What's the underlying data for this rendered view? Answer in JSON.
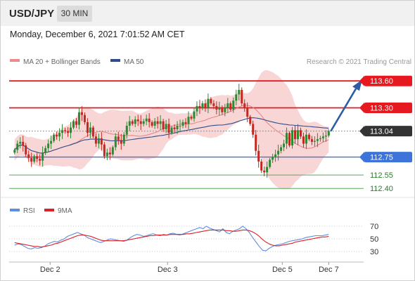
{
  "header": {
    "symbol": "USD/JPY",
    "interval": "30 MIN",
    "datetime": "Monday, December 6, 2021 7:01:52 AM CET"
  },
  "legend": {
    "ma20_label": "MA 20 + Bollinger Bands",
    "ma50_label": "MA 50",
    "copyright": "Research © 2021 Trading Central",
    "rsi_label": "RSI",
    "rsi_ma_label": "9MA"
  },
  "colors": {
    "resistance": "#e5191f",
    "support": "#3d74d9",
    "target_support": "#5aa85a",
    "current": "#333333",
    "candle_up": "#2d8a34",
    "candle_down": "#c42821",
    "bollinger_fill": "#f7c8c8",
    "ma20": "#e88080",
    "ma50": "#2e4b8c",
    "arrow": "#2c5da3",
    "rsi": "#5f8ee0",
    "rsi_ma": "#d9222a"
  },
  "chart_data": [
    {
      "type": "candlestick",
      "ylim": [
        112.3,
        113.68
      ],
      "xlim": [
        0,
        120
      ],
      "x_ticks": [
        {
          "label": "Dec 2",
          "x": 15
        },
        {
          "label": "Dec 3",
          "x": 58
        },
        {
          "label": "Dec 5",
          "x": 100
        },
        {
          "label": "Dec 7",
          "x": 117
        }
      ],
      "levels": [
        {
          "label": "113.60",
          "value": 113.6,
          "kind": "resistance"
        },
        {
          "label": "113.30",
          "value": 113.3,
          "kind": "resistance"
        },
        {
          "label": "113.04",
          "value": 113.04,
          "kind": "current"
        },
        {
          "label": "112.75",
          "value": 112.75,
          "kind": "support"
        },
        {
          "label": "112.55",
          "value": 112.55,
          "kind": "target_support"
        },
        {
          "label": "112.40",
          "value": 112.4,
          "kind": "target_support"
        }
      ],
      "closes": [
        112.83,
        112.9,
        112.92,
        112.88,
        112.78,
        112.74,
        112.7,
        112.76,
        112.73,
        112.71,
        112.8,
        112.85,
        112.9,
        112.93,
        113.0,
        112.98,
        113.02,
        113.05,
        113.04,
        113.02,
        113.08,
        113.15,
        113.11,
        113.25,
        113.22,
        113.14,
        113.02,
        113.08,
        112.98,
        112.9,
        112.96,
        112.89,
        112.76,
        112.8,
        112.78,
        112.86,
        112.98,
        112.94,
        112.9,
        113.0,
        113.1,
        113.15,
        113.12,
        113.17,
        113.15,
        113.12,
        113.15,
        113.18,
        113.14,
        113.1,
        113.15,
        113.12,
        113.15,
        113.06,
        113.12,
        113.02,
        113.08,
        113.06,
        113.1,
        113.1,
        113.14,
        113.12,
        113.2,
        113.18,
        113.26,
        113.32,
        113.3,
        113.35,
        113.3,
        113.4,
        113.35,
        113.32,
        113.28,
        113.3,
        113.25,
        113.3,
        113.35,
        113.28,
        113.38,
        113.45,
        113.5,
        113.35,
        113.3,
        113.2,
        113.12,
        113.0,
        112.82,
        112.7,
        112.6,
        112.58,
        112.64,
        112.72,
        112.75,
        112.78,
        112.82,
        112.86,
        112.9,
        113.02,
        112.88,
        113.05,
        112.95,
        113.05,
        112.98,
        112.9,
        113.0,
        112.95,
        112.92,
        112.93,
        112.95,
        112.96,
        112.98,
        112.99,
        113.04
      ]
    },
    {
      "type": "line",
      "title": "RSI",
      "ylim": [
        20,
        80
      ],
      "y_ticks": [
        70,
        50,
        30
      ],
      "series": [
        {
          "name": "RSI",
          "values": [
            40,
            42,
            41,
            38,
            35,
            34,
            36,
            35,
            36,
            38,
            42,
            44,
            46,
            45,
            48,
            50,
            54,
            56,
            58,
            60,
            58,
            56,
            52,
            50,
            48,
            46,
            44,
            46,
            48,
            50,
            49,
            48,
            47,
            46,
            48,
            52,
            55,
            57,
            56,
            54,
            55,
            57,
            58,
            56,
            55,
            57,
            56,
            58,
            59,
            57,
            56,
            58,
            60,
            62,
            64,
            66,
            68,
            66,
            70,
            67,
            65,
            63,
            61,
            66,
            60,
            58,
            62,
            64,
            66,
            70,
            66,
            60,
            52,
            45,
            38,
            32,
            31,
            35,
            38,
            40,
            41,
            42,
            44,
            46,
            47,
            48,
            49,
            50,
            52,
            53,
            54,
            55,
            55,
            55,
            56,
            57
          ]
        },
        {
          "name": "9MA",
          "values": [
            44,
            43,
            42,
            41,
            40,
            39,
            38,
            38,
            37,
            38,
            39,
            40,
            42,
            43,
            45,
            47,
            49,
            51,
            53,
            55,
            56,
            56,
            55,
            54,
            52,
            50,
            48,
            47,
            47,
            47,
            47,
            47,
            47,
            47,
            48,
            49,
            50,
            51,
            52,
            53,
            54,
            55,
            55,
            56,
            56,
            56,
            56,
            57,
            57,
            57,
            57,
            57,
            58,
            58,
            59,
            60,
            61,
            62,
            63,
            64,
            64,
            64,
            64,
            64,
            63,
            63,
            62,
            62,
            63,
            64,
            64,
            63,
            61,
            58,
            54,
            49,
            45,
            42,
            40,
            39,
            39,
            40,
            41,
            42,
            43,
            45,
            46,
            47,
            48,
            49,
            50,
            51,
            52,
            53,
            53,
            54
          ]
        }
      ]
    }
  ]
}
